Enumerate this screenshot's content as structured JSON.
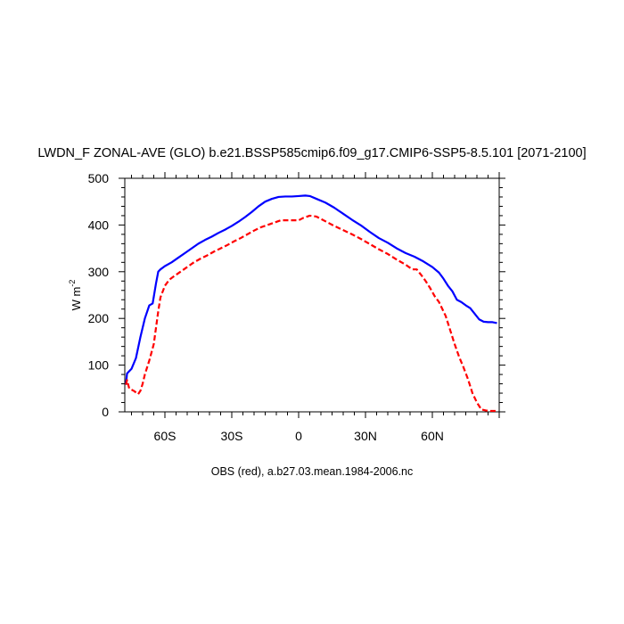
{
  "chart_data": {
    "type": "line",
    "title": "LWDN_F ZONAL-AVE (GLO) b.e21.BSSP585cmip6.f09_g17.CMIP6-SSP5-8.5.101 [2071-2100]",
    "subtitle": "OBS (red), a.b27.03.mean.1984-2006.nc",
    "ylabel": "W m",
    "ylabel_sup": "-2",
    "xlim": [
      -78,
      90
    ],
    "ylim": [
      0,
      500
    ],
    "x_ticks": [
      {
        "value": -60,
        "label": "60S"
      },
      {
        "value": -30,
        "label": "30S"
      },
      {
        "value": 0,
        "label": "0"
      },
      {
        "value": 30,
        "label": "30N"
      },
      {
        "value": 60,
        "label": "60N"
      }
    ],
    "y_ticks": [
      0,
      100,
      200,
      300,
      400,
      500
    ],
    "grid": false,
    "series": [
      {
        "color": "#0000ff",
        "style": "solid",
        "x": [
          -77.5,
          -77,
          -75,
          -73,
          -71,
          -69,
          -67,
          -65.5,
          -64,
          -63,
          -62,
          -60,
          -57,
          -54,
          -51,
          -48,
          -45,
          -42,
          -39,
          -36,
          -33,
          -30,
          -27,
          -24,
          -21,
          -18,
          -15,
          -12,
          -9,
          -6,
          -3,
          0,
          3,
          5,
          8,
          12,
          16,
          20,
          24,
          28,
          32,
          36,
          40,
          44,
          48,
          52,
          56,
          60,
          63,
          65,
          67,
          69,
          71,
          73,
          75,
          77,
          79,
          81,
          83,
          85,
          87,
          89
        ],
        "y": [
          58,
          82,
          92,
          115,
          160,
          200,
          228,
          232,
          275,
          300,
          305,
          312,
          320,
          330,
          340,
          350,
          360,
          368,
          375,
          383,
          390,
          398,
          407,
          417,
          428,
          440,
          450,
          456,
          460,
          461,
          461,
          462,
          463,
          462,
          456,
          448,
          437,
          424,
          411,
          399,
          385,
          372,
          362,
          350,
          340,
          332,
          322,
          310,
          298,
          285,
          270,
          258,
          240,
          235,
          228,
          222,
          210,
          198,
          193,
          192,
          192,
          190
        ]
      },
      {
        "color": "#ff0000",
        "style": "dashed",
        "x": [
          -77.5,
          -77,
          -76,
          -74,
          -72,
          -71,
          -70,
          -69,
          -67,
          -65,
          -64,
          -63,
          -62,
          -60,
          -58,
          -56,
          -53,
          -50,
          -47,
          -44,
          -41,
          -38,
          -35,
          -32,
          -29,
          -26,
          -23,
          -20,
          -17,
          -14,
          -11,
          -8,
          -5,
          -2,
          0,
          2,
          5,
          8,
          12,
          16,
          20,
          24,
          28,
          32,
          36,
          40,
          44,
          48,
          51,
          53,
          55,
          57,
          59,
          61,
          63,
          64,
          66,
          68,
          70,
          72,
          74,
          76,
          78,
          80,
          82,
          84,
          86,
          88,
          89
        ],
        "y": [
          58,
          68,
          50,
          45,
          38,
          45,
          60,
          80,
          110,
          145,
          180,
          215,
          245,
          270,
          283,
          290,
          300,
          310,
          320,
          328,
          335,
          343,
          350,
          357,
          365,
          372,
          380,
          388,
          395,
          400,
          405,
          410,
          410,
          410,
          410,
          415,
          420,
          418,
          408,
          398,
          389,
          380,
          370,
          359,
          348,
          338,
          326,
          315,
          305,
          305,
          293,
          280,
          265,
          248,
          235,
          225,
          205,
          175,
          145,
          118,
          95,
          70,
          40,
          20,
          5,
          3,
          2,
          2,
          2
        ]
      }
    ]
  }
}
